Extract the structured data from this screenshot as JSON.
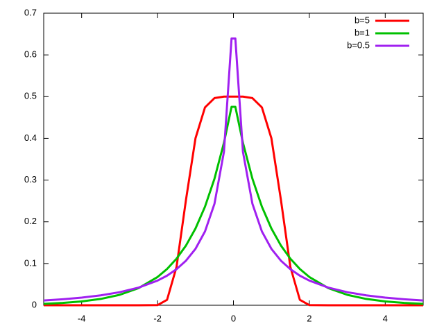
{
  "chart_data": {
    "type": "line",
    "x": [
      -5,
      -4.5,
      -4,
      -3.5,
      -3,
      -2.5,
      -2,
      -1.75,
      -1.5,
      -1.25,
      -1,
      -0.75,
      -0.5,
      -0.25,
      -0.05,
      0.05,
      0.25,
      0.5,
      0.75,
      1,
      1.25,
      1.5,
      1.75,
      2,
      2.5,
      3,
      3.5,
      4,
      4.5,
      5
    ],
    "series": [
      {
        "name": "b=5",
        "color": "#ff0000",
        "values": [
          0,
          0,
          0,
          0,
          0,
          0,
          0.0004,
          0.0129,
          0.0919,
          0.2532,
          0.4003,
          0.4742,
          0.4965,
          0.5,
          0.5,
          0.5,
          0.5,
          0.4965,
          0.4742,
          0.4003,
          0.2532,
          0.0919,
          0.0129,
          0.0004,
          0,
          0,
          0,
          0,
          0,
          0
        ]
      },
      {
        "name": "b=1",
        "color": "#00c000",
        "values": [
          0.0034,
          0.0056,
          0.0092,
          0.0151,
          0.0249,
          0.041,
          0.0677,
          0.0869,
          0.1116,
          0.1433,
          0.1839,
          0.2362,
          0.3033,
          0.3894,
          0.4756,
          0.4756,
          0.3894,
          0.3033,
          0.2362,
          0.1839,
          0.1433,
          0.1116,
          0.0869,
          0.0677,
          0.041,
          0.0249,
          0.0151,
          0.0092,
          0.0056,
          0.0034
        ]
      },
      {
        "name": "b=0.5",
        "color": "#a020f0",
        "values": [
          0.0114,
          0.0144,
          0.0183,
          0.0237,
          0.0313,
          0.0423,
          0.0591,
          0.0709,
          0.0864,
          0.1069,
          0.1353,
          0.1769,
          0.2431,
          0.3679,
          0.6394,
          0.6394,
          0.3679,
          0.2431,
          0.1769,
          0.1353,
          0.1069,
          0.0864,
          0.0709,
          0.0591,
          0.0423,
          0.0313,
          0.0237,
          0.0183,
          0.0144,
          0.0114
        ]
      }
    ],
    "xlim": [
      -5,
      5
    ],
    "xticks": [
      -4,
      -2,
      0,
      2,
      4
    ],
    "ylim": [
      0,
      0.7
    ],
    "yticks": [
      0,
      0.1,
      0.2,
      0.3,
      0.4,
      0.5,
      0.6,
      0.7
    ],
    "legend": "top-right"
  }
}
